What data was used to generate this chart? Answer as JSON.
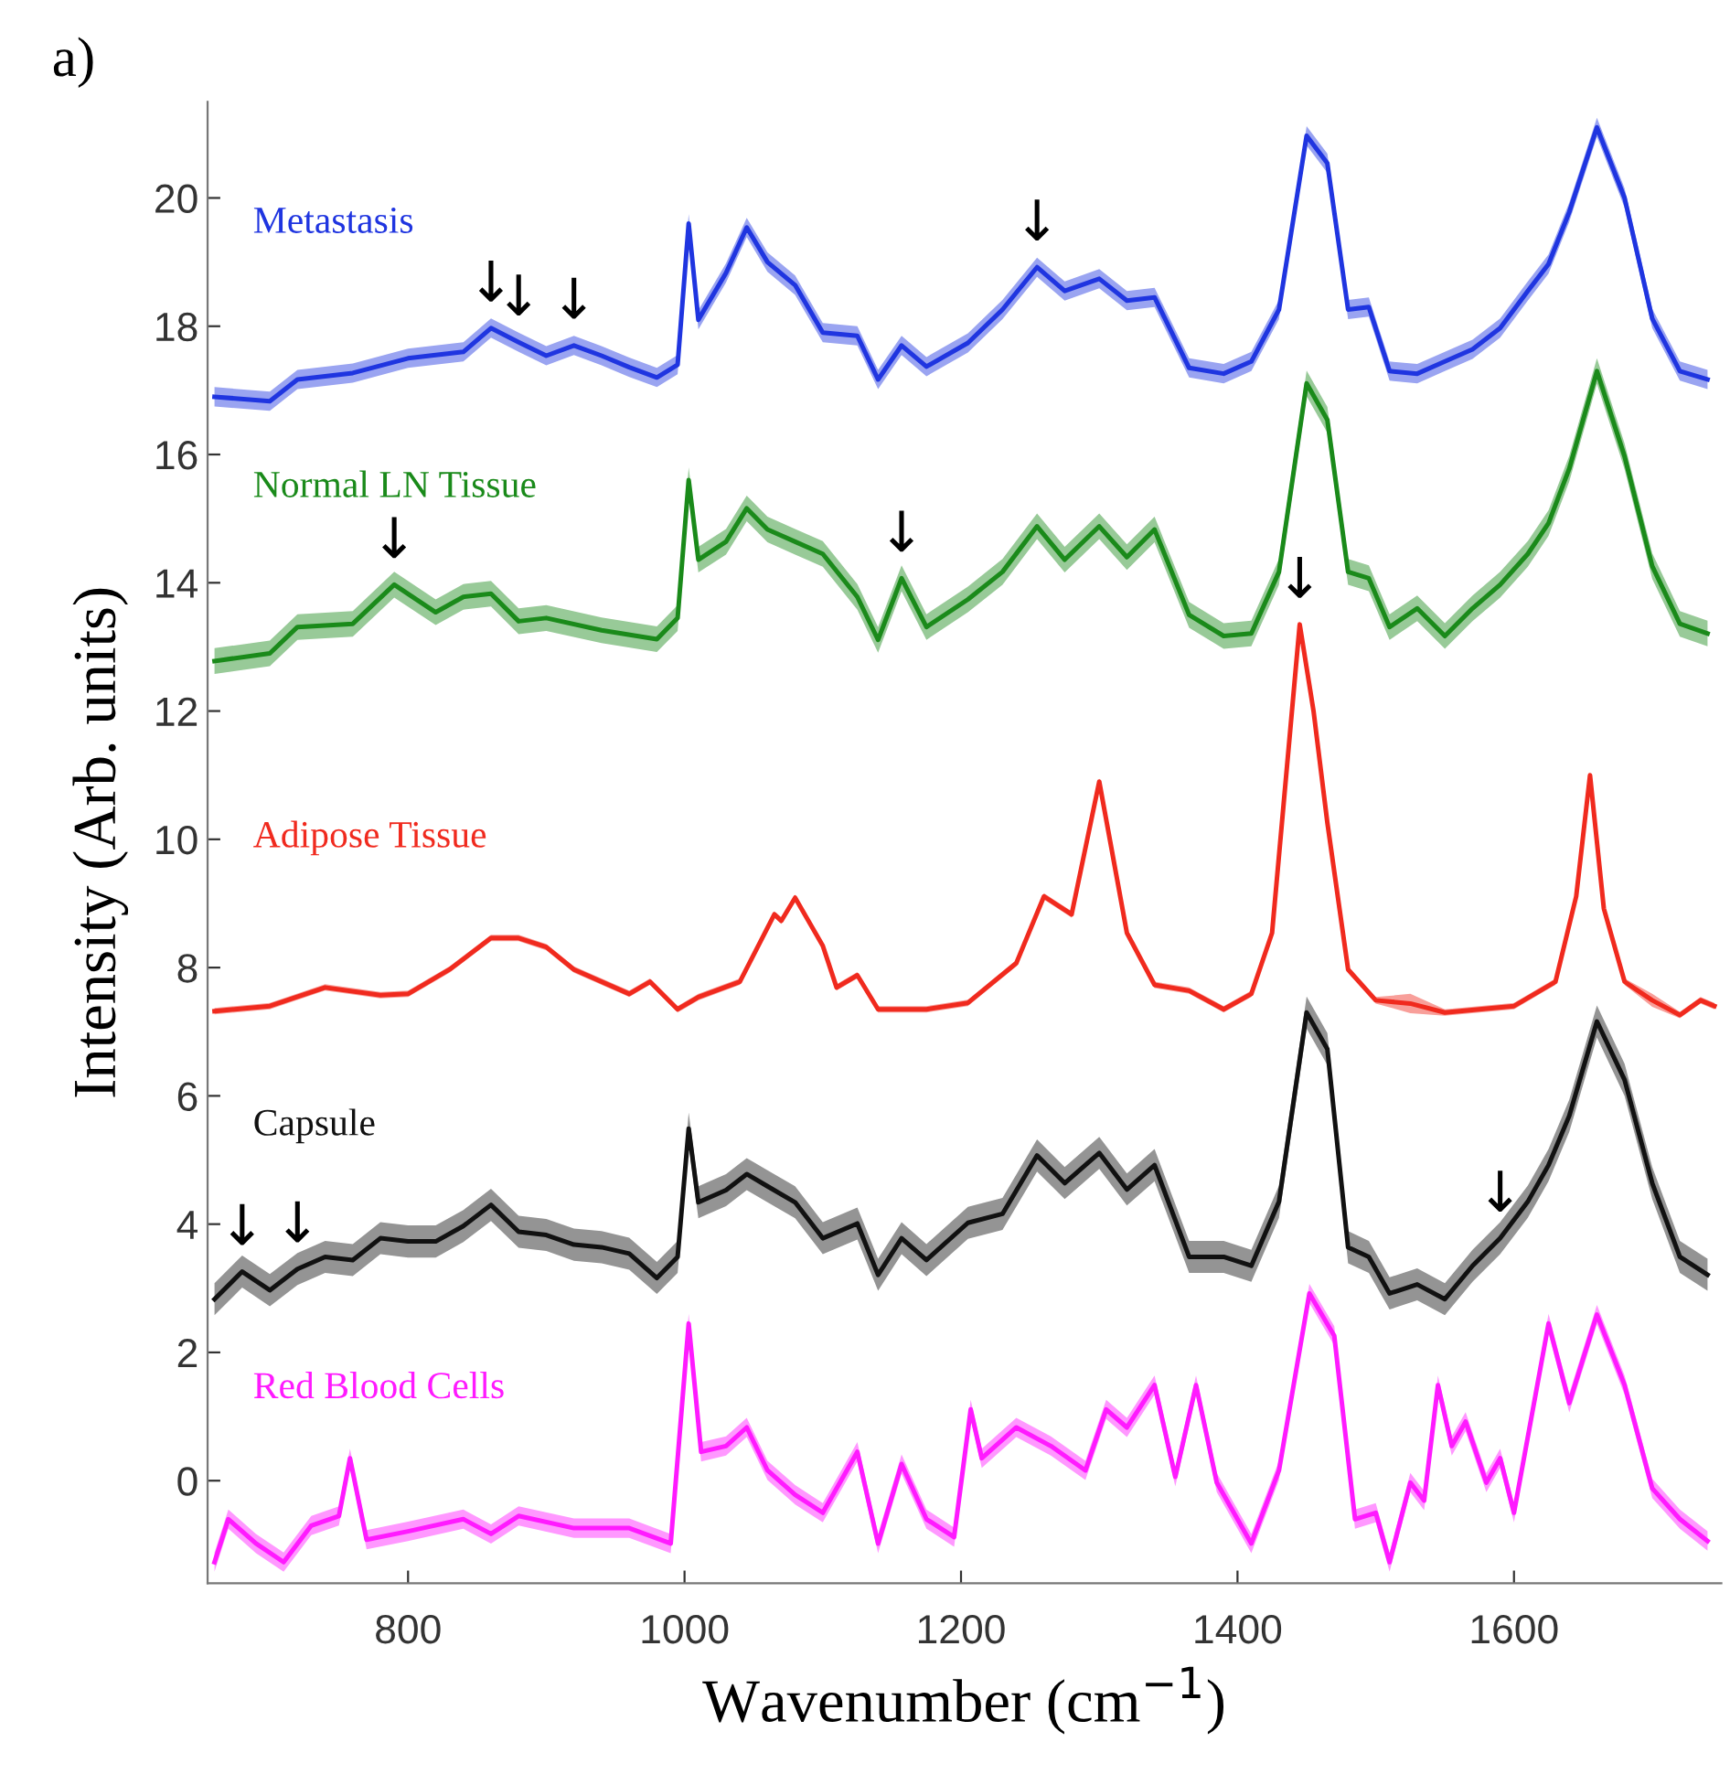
{
  "chart_data": {
    "type": "line",
    "title": "a)",
    "xlabel": "Wavenumber (cm$^{−1}$)",
    "ylabel": "Intensity (Arb. units)",
    "xlim": [
      655,
      1750
    ],
    "ylim": [
      -1.6,
      21.5
    ],
    "xticks": [
      800,
      1000,
      1200,
      1400,
      1600
    ],
    "yticks": [
      0,
      2,
      4,
      6,
      8,
      10,
      12,
      14,
      16,
      18,
      20
    ],
    "grid": false,
    "line_style": "solid",
    "marker": "none",
    "series": [
      {
        "name": "Metastasis",
        "color": "#1f35e0",
        "x": [
          660,
          700,
          720,
          760,
          800,
          840,
          860,
          880,
          900,
          920,
          940,
          960,
          980,
          995,
          1003,
          1010,
          1030,
          1045,
          1060,
          1080,
          1100,
          1125,
          1140,
          1157,
          1175,
          1205,
          1230,
          1255,
          1275,
          1300,
          1320,
          1340,
          1365,
          1390,
          1410,
          1430,
          1450,
          1465,
          1480,
          1495,
          1510,
          1530,
          1550,
          1570,
          1590,
          1610,
          1625,
          1640,
          1660,
          1680,
          1700,
          1720,
          1740
        ],
        "values": [
          16.9,
          16.83,
          17.17,
          17.27,
          17.5,
          17.6,
          17.97,
          17.75,
          17.54,
          17.7,
          17.54,
          17.36,
          17.2,
          17.4,
          19.6,
          18.1,
          18.83,
          19.54,
          19.0,
          18.64,
          17.9,
          17.85,
          17.17,
          17.7,
          17.37,
          17.74,
          18.26,
          18.92,
          18.55,
          18.74,
          18.4,
          18.45,
          17.35,
          17.26,
          17.45,
          18.26,
          20.97,
          20.54,
          18.26,
          18.3,
          17.3,
          17.26,
          17.45,
          17.64,
          17.97,
          18.55,
          18.97,
          19.78,
          21.1,
          20.0,
          18.12,
          17.3,
          17.17
        ],
        "lower": [
          16.75,
          16.68,
          17.02,
          17.12,
          17.35,
          17.45,
          17.82,
          17.6,
          17.39,
          17.55,
          17.39,
          17.21,
          17.05,
          17.25,
          19.45,
          17.95,
          18.68,
          19.39,
          18.85,
          18.49,
          17.75,
          17.7,
          17.02,
          17.55,
          17.22,
          17.59,
          18.11,
          18.77,
          18.4,
          18.59,
          18.25,
          18.3,
          17.2,
          17.11,
          17.3,
          18.11,
          20.82,
          20.39,
          18.11,
          18.15,
          17.15,
          17.11,
          17.3,
          17.49,
          17.82,
          18.4,
          18.82,
          19.63,
          20.95,
          19.85,
          17.97,
          17.15,
          17.02
        ],
        "upper": [
          17.05,
          16.98,
          17.32,
          17.42,
          17.65,
          17.75,
          18.12,
          17.9,
          17.69,
          17.85,
          17.69,
          17.51,
          17.35,
          17.55,
          19.75,
          18.25,
          18.98,
          19.69,
          19.15,
          18.79,
          18.05,
          18.0,
          17.32,
          17.85,
          17.52,
          17.89,
          18.41,
          19.07,
          18.7,
          18.89,
          18.55,
          18.6,
          17.5,
          17.41,
          17.6,
          18.41,
          21.12,
          20.69,
          18.41,
          18.45,
          17.45,
          17.41,
          17.6,
          17.79,
          18.12,
          18.7,
          19.12,
          19.93,
          21.25,
          20.15,
          18.27,
          17.45,
          17.32
        ]
      },
      {
        "name": "Normal LN Tissue",
        "color": "#1a8a1a",
        "x": [
          660,
          700,
          720,
          760,
          790,
          820,
          840,
          860,
          880,
          900,
          940,
          980,
          995,
          1003,
          1010,
          1030,
          1045,
          1060,
          1080,
          1100,
          1125,
          1140,
          1157,
          1175,
          1205,
          1230,
          1255,
          1275,
          1300,
          1320,
          1340,
          1365,
          1390,
          1410,
          1430,
          1450,
          1465,
          1480,
          1495,
          1510,
          1530,
          1550,
          1570,
          1590,
          1610,
          1625,
          1640,
          1660,
          1680,
          1700,
          1720,
          1740
        ],
        "values": [
          12.78,
          12.9,
          13.31,
          13.36,
          13.97,
          13.54,
          13.78,
          13.83,
          13.4,
          13.45,
          13.26,
          13.12,
          13.45,
          15.6,
          14.36,
          14.64,
          15.16,
          14.83,
          14.64,
          14.45,
          13.78,
          13.11,
          14.07,
          13.31,
          13.74,
          14.17,
          14.88,
          14.36,
          14.88,
          14.4,
          14.83,
          13.5,
          13.17,
          13.21,
          14.17,
          17.11,
          16.54,
          14.17,
          14.07,
          13.31,
          13.6,
          13.17,
          13.6,
          13.97,
          14.45,
          14.93,
          15.78,
          17.3,
          15.97,
          14.26,
          13.36,
          13.21
        ],
        "lower": [
          12.58,
          12.7,
          13.11,
          13.16,
          13.77,
          13.34,
          13.58,
          13.63,
          13.2,
          13.25,
          13.06,
          12.92,
          13.25,
          15.4,
          14.16,
          14.44,
          14.96,
          14.63,
          14.44,
          14.25,
          13.58,
          12.91,
          13.87,
          13.11,
          13.54,
          13.97,
          14.68,
          14.16,
          14.68,
          14.2,
          14.63,
          13.3,
          12.97,
          13.01,
          13.97,
          16.91,
          16.34,
          13.97,
          13.87,
          13.11,
          13.4,
          12.97,
          13.4,
          13.77,
          14.25,
          14.73,
          15.58,
          17.1,
          15.77,
          14.06,
          13.16,
          13.01
        ],
        "upper": [
          12.98,
          13.1,
          13.51,
          13.56,
          14.17,
          13.74,
          13.98,
          14.03,
          13.6,
          13.65,
          13.46,
          13.32,
          13.65,
          15.8,
          14.56,
          14.84,
          15.36,
          15.03,
          14.84,
          14.65,
          13.98,
          13.31,
          14.27,
          13.51,
          13.94,
          14.37,
          15.08,
          14.56,
          15.08,
          14.6,
          15.03,
          13.7,
          13.37,
          13.41,
          14.37,
          17.31,
          16.74,
          14.37,
          14.27,
          13.51,
          13.8,
          13.37,
          13.8,
          14.17,
          14.65,
          15.13,
          15.98,
          17.5,
          16.17,
          14.46,
          13.56,
          13.41
        ]
      },
      {
        "name": "Adipose Tissue",
        "color": "#f02a1e",
        "x": [
          660,
          700,
          740,
          780,
          800,
          830,
          860,
          880,
          900,
          920,
          960,
          975,
          995,
          1010,
          1040,
          1065,
          1070,
          1080,
          1100,
          1110,
          1125,
          1140,
          1175,
          1205,
          1240,
          1260,
          1280,
          1300,
          1320,
          1340,
          1365,
          1390,
          1410,
          1425,
          1445,
          1455,
          1465,
          1480,
          1500,
          1525,
          1550,
          1600,
          1630,
          1645,
          1655,
          1665,
          1680,
          1700,
          1720,
          1735,
          1745
        ],
        "values": [
          7.32,
          7.4,
          7.69,
          7.57,
          7.59,
          7.97,
          8.46,
          8.46,
          8.32,
          7.97,
          7.59,
          7.78,
          7.35,
          7.54,
          7.78,
          8.83,
          8.73,
          9.09,
          8.34,
          7.69,
          7.88,
          7.35,
          7.35,
          7.45,
          8.07,
          9.11,
          8.83,
          10.9,
          8.54,
          7.73,
          7.64,
          7.35,
          7.59,
          8.54,
          13.35,
          12.0,
          10.26,
          7.97,
          7.49,
          7.44,
          7.3,
          7.4,
          7.78,
          9.11,
          11.0,
          8.92,
          7.78,
          7.49,
          7.26,
          7.49,
          7.4
        ],
        "lower": [
          7.27,
          7.35,
          7.64,
          7.52,
          7.54,
          7.92,
          8.41,
          8.41,
          8.27,
          7.92,
          7.54,
          7.73,
          7.3,
          7.49,
          7.73,
          8.78,
          8.68,
          9.04,
          8.29,
          7.64,
          7.83,
          7.3,
          7.3,
          7.4,
          8.02,
          9.06,
          8.78,
          10.85,
          8.49,
          7.68,
          7.59,
          7.3,
          7.54,
          8.49,
          13.3,
          11.95,
          10.21,
          7.92,
          7.44,
          7.29,
          7.25,
          7.35,
          7.73,
          9.06,
          10.95,
          8.87,
          7.73,
          7.39,
          7.21,
          7.44,
          7.35
        ],
        "upper": [
          7.37,
          7.45,
          7.74,
          7.62,
          7.64,
          8.02,
          8.51,
          8.51,
          8.37,
          8.02,
          7.64,
          7.83,
          7.4,
          7.59,
          7.83,
          8.88,
          8.78,
          9.14,
          8.39,
          7.74,
          7.93,
          7.4,
          7.4,
          7.5,
          8.12,
          9.16,
          8.88,
          10.95,
          8.59,
          7.78,
          7.69,
          7.4,
          7.64,
          8.59,
          13.4,
          12.05,
          10.31,
          8.02,
          7.54,
          7.59,
          7.35,
          7.45,
          7.83,
          9.16,
          11.05,
          8.97,
          7.83,
          7.59,
          7.31,
          7.54,
          7.45
        ]
      },
      {
        "name": "Capsule",
        "color": "#111111",
        "x": [
          660,
          680,
          700,
          720,
          740,
          760,
          780,
          800,
          820,
          840,
          860,
          880,
          900,
          920,
          940,
          960,
          980,
          995,
          1003,
          1010,
          1030,
          1045,
          1060,
          1080,
          1100,
          1125,
          1140,
          1157,
          1175,
          1205,
          1230,
          1255,
          1275,
          1300,
          1320,
          1340,
          1365,
          1390,
          1410,
          1430,
          1450,
          1465,
          1480,
          1495,
          1510,
          1530,
          1550,
          1570,
          1590,
          1610,
          1625,
          1640,
          1660,
          1680,
          1700,
          1720,
          1740
        ],
        "values": [
          2.83,
          3.26,
          2.97,
          3.3,
          3.49,
          3.44,
          3.78,
          3.73,
          3.73,
          3.97,
          4.3,
          3.88,
          3.83,
          3.68,
          3.64,
          3.54,
          3.16,
          3.49,
          5.49,
          4.34,
          4.53,
          4.78,
          4.59,
          4.34,
          3.78,
          4.01,
          3.21,
          3.78,
          3.44,
          4.02,
          4.16,
          5.07,
          4.64,
          5.11,
          4.54,
          4.92,
          3.49,
          3.49,
          3.35,
          4.35,
          7.3,
          6.73,
          3.64,
          3.49,
          2.92,
          3.06,
          2.83,
          3.35,
          3.78,
          4.35,
          4.92,
          5.69,
          7.16,
          6.25,
          4.64,
          3.49,
          3.21
        ],
        "lower": [
          2.58,
          3.01,
          2.72,
          3.05,
          3.24,
          3.19,
          3.53,
          3.48,
          3.48,
          3.72,
          4.05,
          3.63,
          3.58,
          3.43,
          3.39,
          3.29,
          2.91,
          3.24,
          5.24,
          4.09,
          4.28,
          4.53,
          4.34,
          4.09,
          3.53,
          3.76,
          2.96,
          3.53,
          3.19,
          3.77,
          3.91,
          4.82,
          4.39,
          4.86,
          4.29,
          4.67,
          3.24,
          3.24,
          3.1,
          4.1,
          7.05,
          6.48,
          3.39,
          3.24,
          2.67,
          2.81,
          2.58,
          3.1,
          3.53,
          4.1,
          4.67,
          5.44,
          6.91,
          6.0,
          4.39,
          3.24,
          2.96
        ],
        "upper": [
          3.08,
          3.51,
          3.22,
          3.55,
          3.74,
          3.69,
          4.03,
          3.98,
          3.98,
          4.22,
          4.55,
          4.13,
          4.08,
          3.93,
          3.89,
          3.79,
          3.41,
          3.74,
          5.74,
          4.59,
          4.78,
          5.03,
          4.84,
          4.59,
          4.03,
          4.26,
          3.46,
          4.03,
          3.69,
          4.27,
          4.41,
          5.32,
          4.89,
          5.36,
          4.79,
          5.17,
          3.74,
          3.74,
          3.6,
          4.6,
          7.55,
          6.98,
          3.89,
          3.74,
          3.17,
          3.31,
          3.08,
          3.6,
          4.03,
          4.6,
          5.17,
          5.94,
          7.41,
          6.5,
          4.89,
          3.74,
          3.46
        ]
      },
      {
        "name": "Red Blood Cells",
        "color": "#ff1aff",
        "x": [
          660,
          670,
          690,
          710,
          730,
          750,
          758,
          770,
          800,
          840,
          860,
          880,
          920,
          960,
          990,
          1003,
          1012,
          1030,
          1045,
          1060,
          1080,
          1100,
          1125,
          1140,
          1157,
          1175,
          1195,
          1207,
          1215,
          1240,
          1265,
          1290,
          1305,
          1320,
          1340,
          1355,
          1370,
          1385,
          1410,
          1430,
          1452,
          1470,
          1485,
          1500,
          1510,
          1525,
          1535,
          1545,
          1555,
          1565,
          1580,
          1590,
          1600,
          1625,
          1640,
          1660,
          1680,
          1700,
          1720,
          1740
        ],
        "values": [
          -1.27,
          -0.6,
          -0.98,
          -1.27,
          -0.7,
          -0.55,
          0.35,
          -0.92,
          -0.79,
          -0.6,
          -0.83,
          -0.55,
          -0.74,
          -0.74,
          -0.98,
          2.45,
          0.45,
          0.54,
          0.83,
          0.16,
          -0.22,
          -0.5,
          0.45,
          -0.98,
          0.26,
          -0.6,
          -0.88,
          1.11,
          0.35,
          0.83,
          0.54,
          0.16,
          1.11,
          0.83,
          1.49,
          0.06,
          1.49,
          -0.03,
          -0.98,
          0.16,
          2.92,
          2.26,
          -0.6,
          -0.5,
          -1.27,
          -0.03,
          -0.31,
          1.49,
          0.54,
          0.92,
          -0.03,
          0.35,
          -0.5,
          2.45,
          1.21,
          2.59,
          1.49,
          -0.12,
          -0.6,
          -0.94
        ],
        "lower": [
          -1.42,
          -0.75,
          -1.13,
          -1.42,
          -0.85,
          -0.7,
          0.2,
          -1.07,
          -0.94,
          -0.75,
          -0.98,
          -0.7,
          -0.89,
          -0.89,
          -1.13,
          2.3,
          0.3,
          0.39,
          0.68,
          0.01,
          -0.37,
          -0.65,
          0.3,
          -1.13,
          0.11,
          -0.75,
          -1.03,
          0.96,
          0.2,
          0.68,
          0.39,
          0.01,
          0.96,
          0.68,
          1.34,
          -0.09,
          1.34,
          -0.18,
          -1.13,
          0.01,
          2.77,
          2.11,
          -0.75,
          -0.65,
          -1.42,
          -0.18,
          -0.46,
          1.34,
          0.39,
          0.77,
          -0.18,
          0.2,
          -0.65,
          2.3,
          1.06,
          2.44,
          1.34,
          -0.27,
          -0.75,
          -1.09
        ],
        "upper": [
          -1.12,
          -0.45,
          -0.83,
          -1.12,
          -0.55,
          -0.4,
          0.5,
          -0.77,
          -0.64,
          -0.45,
          -0.68,
          -0.4,
          -0.59,
          -0.59,
          -0.83,
          2.6,
          0.6,
          0.69,
          0.98,
          0.31,
          -0.07,
          -0.35,
          0.6,
          -0.83,
          0.41,
          -0.45,
          -0.73,
          1.26,
          0.5,
          0.98,
          0.69,
          0.31,
          1.26,
          0.98,
          1.64,
          0.21,
          1.64,
          0.12,
          -0.83,
          0.31,
          3.07,
          2.41,
          -0.45,
          -0.35,
          -1.12,
          0.12,
          -0.16,
          1.64,
          0.69,
          1.07,
          0.12,
          0.5,
          -0.35,
          2.6,
          1.36,
          2.74,
          1.64,
          0.03,
          -0.45,
          -0.79
        ]
      }
    ],
    "annotations": [
      {
        "text": "↓",
        "x": 860,
        "y": 17.97
      },
      {
        "text": "↓",
        "x": 880,
        "y": 17.75
      },
      {
        "text": "↓",
        "x": 920,
        "y": 17.7
      },
      {
        "text": "↓",
        "x": 1255,
        "y": 18.92
      },
      {
        "text": "↓",
        "x": 790,
        "y": 13.97
      },
      {
        "text": "↓",
        "x": 1157,
        "y": 14.07
      },
      {
        "text": "↓",
        "x": 1445,
        "y": 13.35
      },
      {
        "text": "↓",
        "x": 680,
        "y": 3.26
      },
      {
        "text": "↓",
        "x": 720,
        "y": 3.3
      },
      {
        "text": "↓",
        "x": 1590,
        "y": 3.78
      }
    ]
  }
}
